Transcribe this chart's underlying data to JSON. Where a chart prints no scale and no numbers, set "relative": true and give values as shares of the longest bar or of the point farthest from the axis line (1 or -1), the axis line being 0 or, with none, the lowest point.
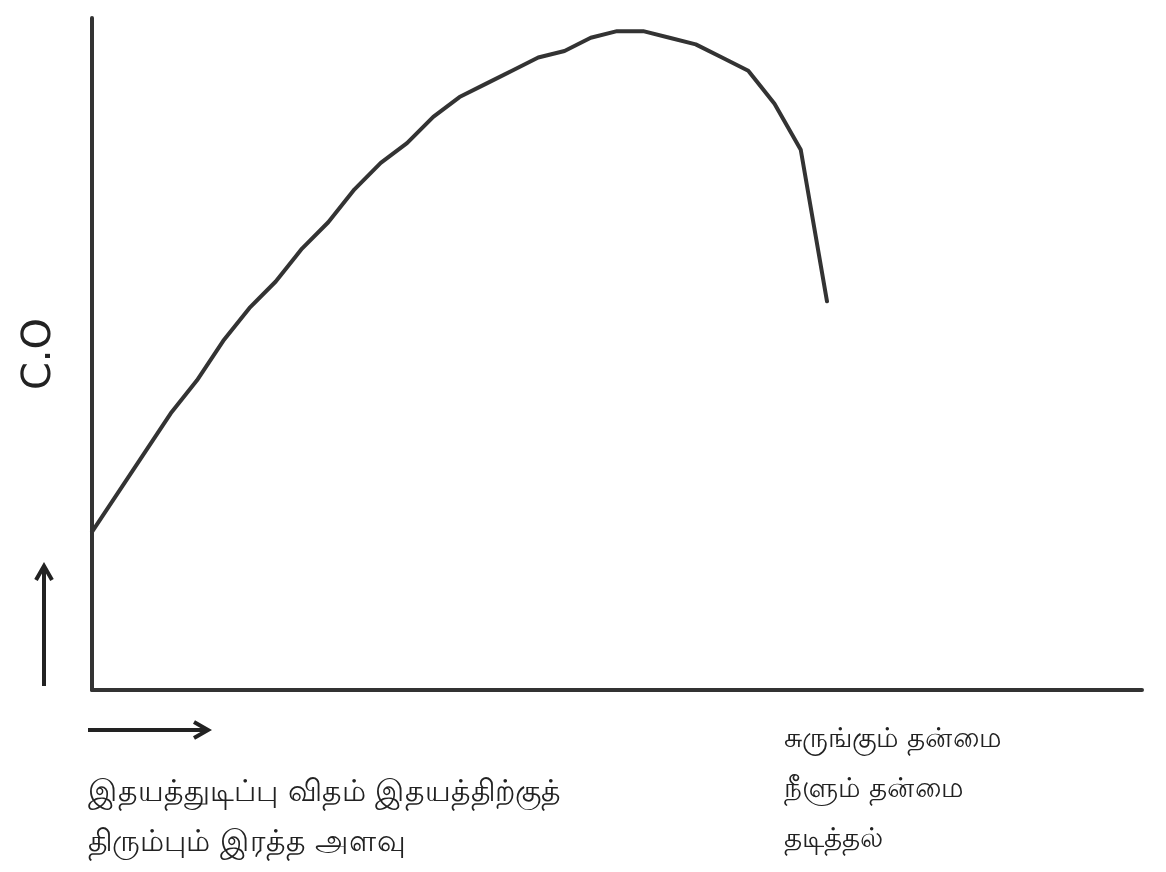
{
  "chart_data": {
    "type": "line",
    "relative": true,
    "ylabel": "C.O",
    "xlabel": "இதயத்துடிப்பு விதம் இதயத்திற்குத்\nதிரும்பும் இரத்த அளவு",
    "annotations": [
      "சுருங்கும் தன்மை\nநீளும் தன்மை\nதடித்தல்"
    ],
    "categories": [
      null,
      null,
      null,
      null,
      null,
      null,
      null,
      null,
      null,
      null,
      null,
      null,
      null,
      null,
      null,
      null,
      null,
      null,
      null,
      null,
      null,
      null,
      null,
      null,
      null,
      null,
      null,
      null,
      null,
      null,
      null,
      null,
      null,
      null,
      null,
      null,
      null,
      null,
      null,
      null,
      null
    ],
    "grid": false,
    "marker": "none",
    "line_style": "solid",
    "series": [
      {
        "color": "#333333",
        "values": [
          0.24,
          0.3,
          0.36,
          0.42,
          0.47,
          0.53,
          0.58,
          0.62,
          0.67,
          0.71,
          0.76,
          0.8,
          0.83,
          0.87,
          0.9,
          0.92,
          0.94,
          0.96,
          0.97,
          0.99,
          1,
          1,
          0.99,
          0.98,
          0.96,
          0.94,
          0.89,
          0.82,
          0.59,
          null,
          null,
          null,
          null,
          null,
          null,
          null,
          null,
          null,
          null,
          null,
          null
        ]
      }
    ]
  }
}
